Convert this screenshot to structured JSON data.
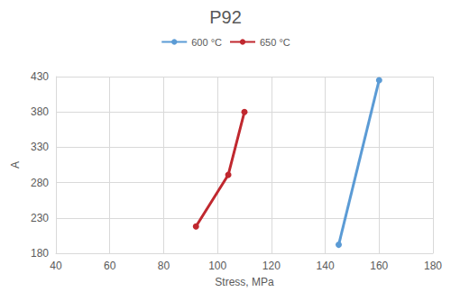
{
  "chart_data": {
    "type": "line",
    "title": "P92",
    "x_label": "Stress, MPa",
    "y_label": "A",
    "series": [
      {
        "name": "600 °C",
        "color": "#5b9bd5",
        "marker": "circle",
        "x": [
          145,
          160
        ],
        "values": [
          192,
          425
        ]
      },
      {
        "name": "650 °C",
        "color": "#c0282f",
        "marker": "circle",
        "x": [
          92,
          104,
          110
        ],
        "values": [
          218,
          291,
          380
        ]
      }
    ],
    "xlim": [
      40,
      180
    ],
    "xticks": [
      40,
      60,
      80,
      100,
      120,
      140,
      160,
      180
    ],
    "ylim": [
      180,
      430
    ],
    "yticks": [
      180,
      230,
      280,
      330,
      380,
      430
    ],
    "grid": true,
    "legend": "top"
  }
}
